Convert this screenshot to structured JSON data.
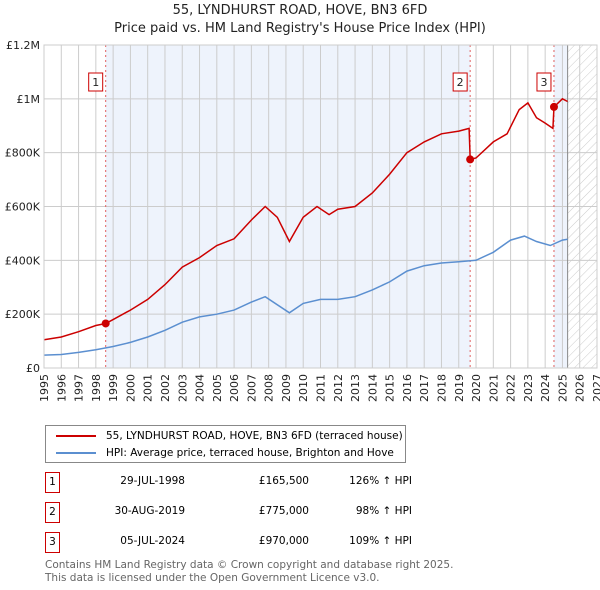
{
  "chart_data": {
    "type": "line",
    "title": "55, LYNDHURST ROAD, HOVE, BN3 6FD",
    "subtitle": "Price paid vs. HM Land Registry's House Price Index (HPI)",
    "xlim": [
      1995,
      2027
    ],
    "ylim": [
      0,
      1200000
    ],
    "x_ticks": [
      "1995",
      "1996",
      "1997",
      "1998",
      "1999",
      "2000",
      "2001",
      "2002",
      "2003",
      "2004",
      "2005",
      "2006",
      "2007",
      "2008",
      "2009",
      "2010",
      "2011",
      "2012",
      "2013",
      "2014",
      "2015",
      "2016",
      "2017",
      "2018",
      "2019",
      "2020",
      "2021",
      "2022",
      "2023",
      "2024",
      "2025",
      "2026",
      "2027"
    ],
    "y_ticks": [
      {
        "v": 0,
        "label": "£0"
      },
      {
        "v": 200000,
        "label": "£200K"
      },
      {
        "v": 400000,
        "label": "£400K"
      },
      {
        "v": 600000,
        "label": "£600K"
      },
      {
        "v": 800000,
        "label": "£800K"
      },
      {
        "v": 1000000,
        "label": "£1M"
      },
      {
        "v": 1200000,
        "label": "£1.2M"
      }
    ],
    "grid": true,
    "series": [
      {
        "name": "55, LYNDHURST ROAD, HOVE, BN3 6FD (terraced house)",
        "color": "#cc0000",
        "x": [
          1995,
          1996,
          1997,
          1998,
          1998.57,
          1999,
          2000,
          2001,
          2002,
          2003,
          2004,
          2005,
          2006,
          2007,
          2007.8,
          2008.5,
          2009.2,
          2010,
          2010.8,
          2011.5,
          2012,
          2013,
          2014,
          2015,
          2016,
          2017,
          2018,
          2019,
          2019.6,
          2019.66,
          2020,
          2021,
          2021.8,
          2022.5,
          2023,
          2023.5,
          2024,
          2024.45,
          2024.51,
          2025,
          2025.3
        ],
        "y": [
          105000,
          115000,
          135000,
          158000,
          165500,
          180000,
          215000,
          255000,
          310000,
          375000,
          410000,
          455000,
          480000,
          550000,
          600000,
          560000,
          470000,
          560000,
          600000,
          570000,
          590000,
          600000,
          650000,
          720000,
          800000,
          840000,
          870000,
          880000,
          890000,
          775000,
          780000,
          840000,
          870000,
          960000,
          985000,
          930000,
          910000,
          890000,
          970000,
          1000000,
          990000
        ]
      },
      {
        "name": "HPI: Average price, terraced house, Brighton and Hove",
        "color": "#5b8fd0",
        "x": [
          1995,
          1996,
          1997,
          1998,
          1999,
          2000,
          2001,
          2002,
          2003,
          2004,
          2005,
          2006,
          2007,
          2007.8,
          2009.2,
          2010,
          2011,
          2012,
          2013,
          2014,
          2015,
          2016,
          2017,
          2018,
          2019,
          2020,
          2021,
          2022,
          2022.8,
          2023.5,
          2024.3,
          2025,
          2025.3
        ],
        "y": [
          48000,
          50000,
          58000,
          68000,
          80000,
          95000,
          115000,
          140000,
          170000,
          190000,
          200000,
          215000,
          245000,
          265000,
          205000,
          240000,
          255000,
          255000,
          265000,
          290000,
          320000,
          360000,
          380000,
          390000,
          395000,
          400000,
          430000,
          475000,
          490000,
          470000,
          455000,
          475000,
          478000
        ]
      }
    ],
    "sales": [
      {
        "label": "1",
        "date": "29-JUL-1998",
        "x": 1998.57,
        "price": "£165,500",
        "value": 165500,
        "hpi": "126% ↑ HPI"
      },
      {
        "label": "2",
        "date": "30-AUG-2019",
        "x": 2019.66,
        "price": "£775,000",
        "value": 775000,
        "hpi": "98% ↑ HPI"
      },
      {
        "label": "3",
        "date": "05-JUL-2024",
        "x": 2024.51,
        "price": "£970,000",
        "value": 970000,
        "hpi": "109% ↑ HPI"
      }
    ],
    "forecast_start": 2025.3
  },
  "footer": {
    "line1": "Contains HM Land Registry data © Crown copyright and database right 2025.",
    "line2": "This data is licensed under the Open Government Licence v3.0."
  }
}
